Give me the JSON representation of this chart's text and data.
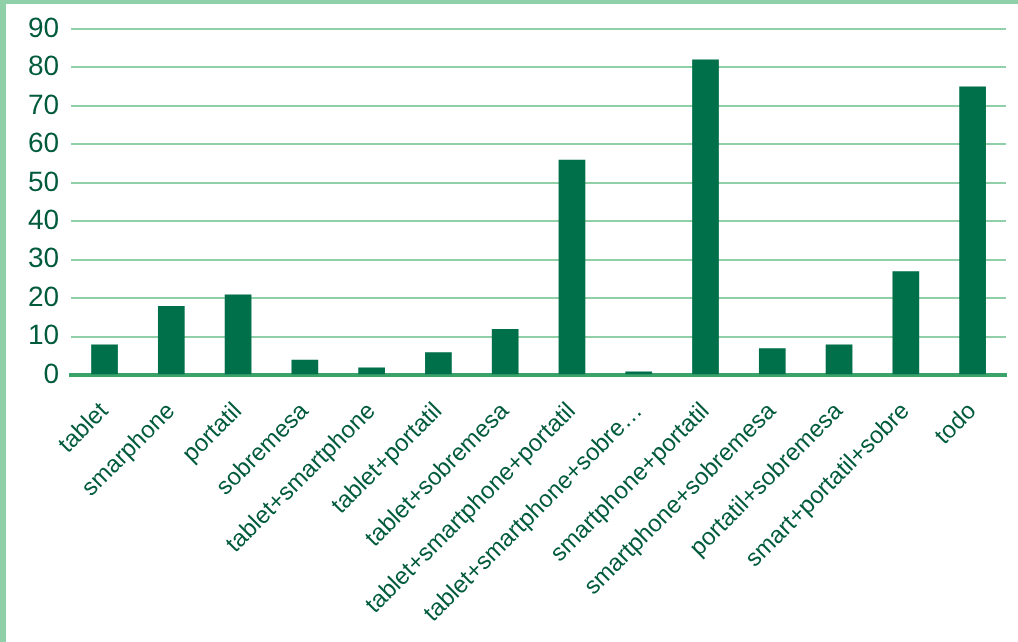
{
  "chart_data": {
    "type": "bar",
    "categories": [
      "tablet",
      "smarphone",
      "portatil",
      "sobremesa",
      "tablet+smartphone",
      "tablet+portatil",
      "tablet+sobremesa",
      "tablet+smartphone+portatil",
      "tablet+smartphone+sobre…",
      "smartphone+portatil",
      "smartphone+sobremesa",
      "portatil+sobremesa",
      "smart+portatil+sobre",
      "todo"
    ],
    "values": [
      8,
      18,
      21,
      4,
      2,
      6,
      12,
      56,
      1,
      82,
      7,
      8,
      27,
      75
    ],
    "color": "#00704a",
    "ylim": [
      0,
      90
    ],
    "yticks": [
      0,
      10,
      20,
      30,
      40,
      50,
      60,
      70,
      80,
      90
    ],
    "grid": "y"
  }
}
